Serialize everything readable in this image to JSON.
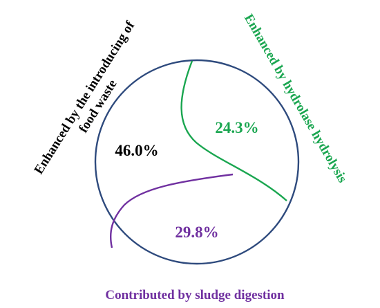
{
  "chart_data": {
    "type": "pie",
    "slices": [
      {
        "label": "Enhanced by the introducing of food waste",
        "label_lines": [
          "Enhanced by the introducing of",
          "food waste"
        ],
        "value": 46.0,
        "value_label": "46.0%",
        "color": "#000000"
      },
      {
        "label": "Enhanced by hydrolase hydrolysis",
        "label_lines": [
          "Enhanced by hydrolase hydrolysis"
        ],
        "value": 24.3,
        "value_label": "24.3%",
        "color": "#1aa650"
      },
      {
        "label": "Contributed by sludge digestion",
        "label_lines": [
          "Contributed by sludge digestion"
        ],
        "value": 29.8,
        "value_label": "29.8%",
        "color": "#7030a0"
      }
    ],
    "circle_color": "#2e4a7d",
    "title": "",
    "legend": "none"
  }
}
